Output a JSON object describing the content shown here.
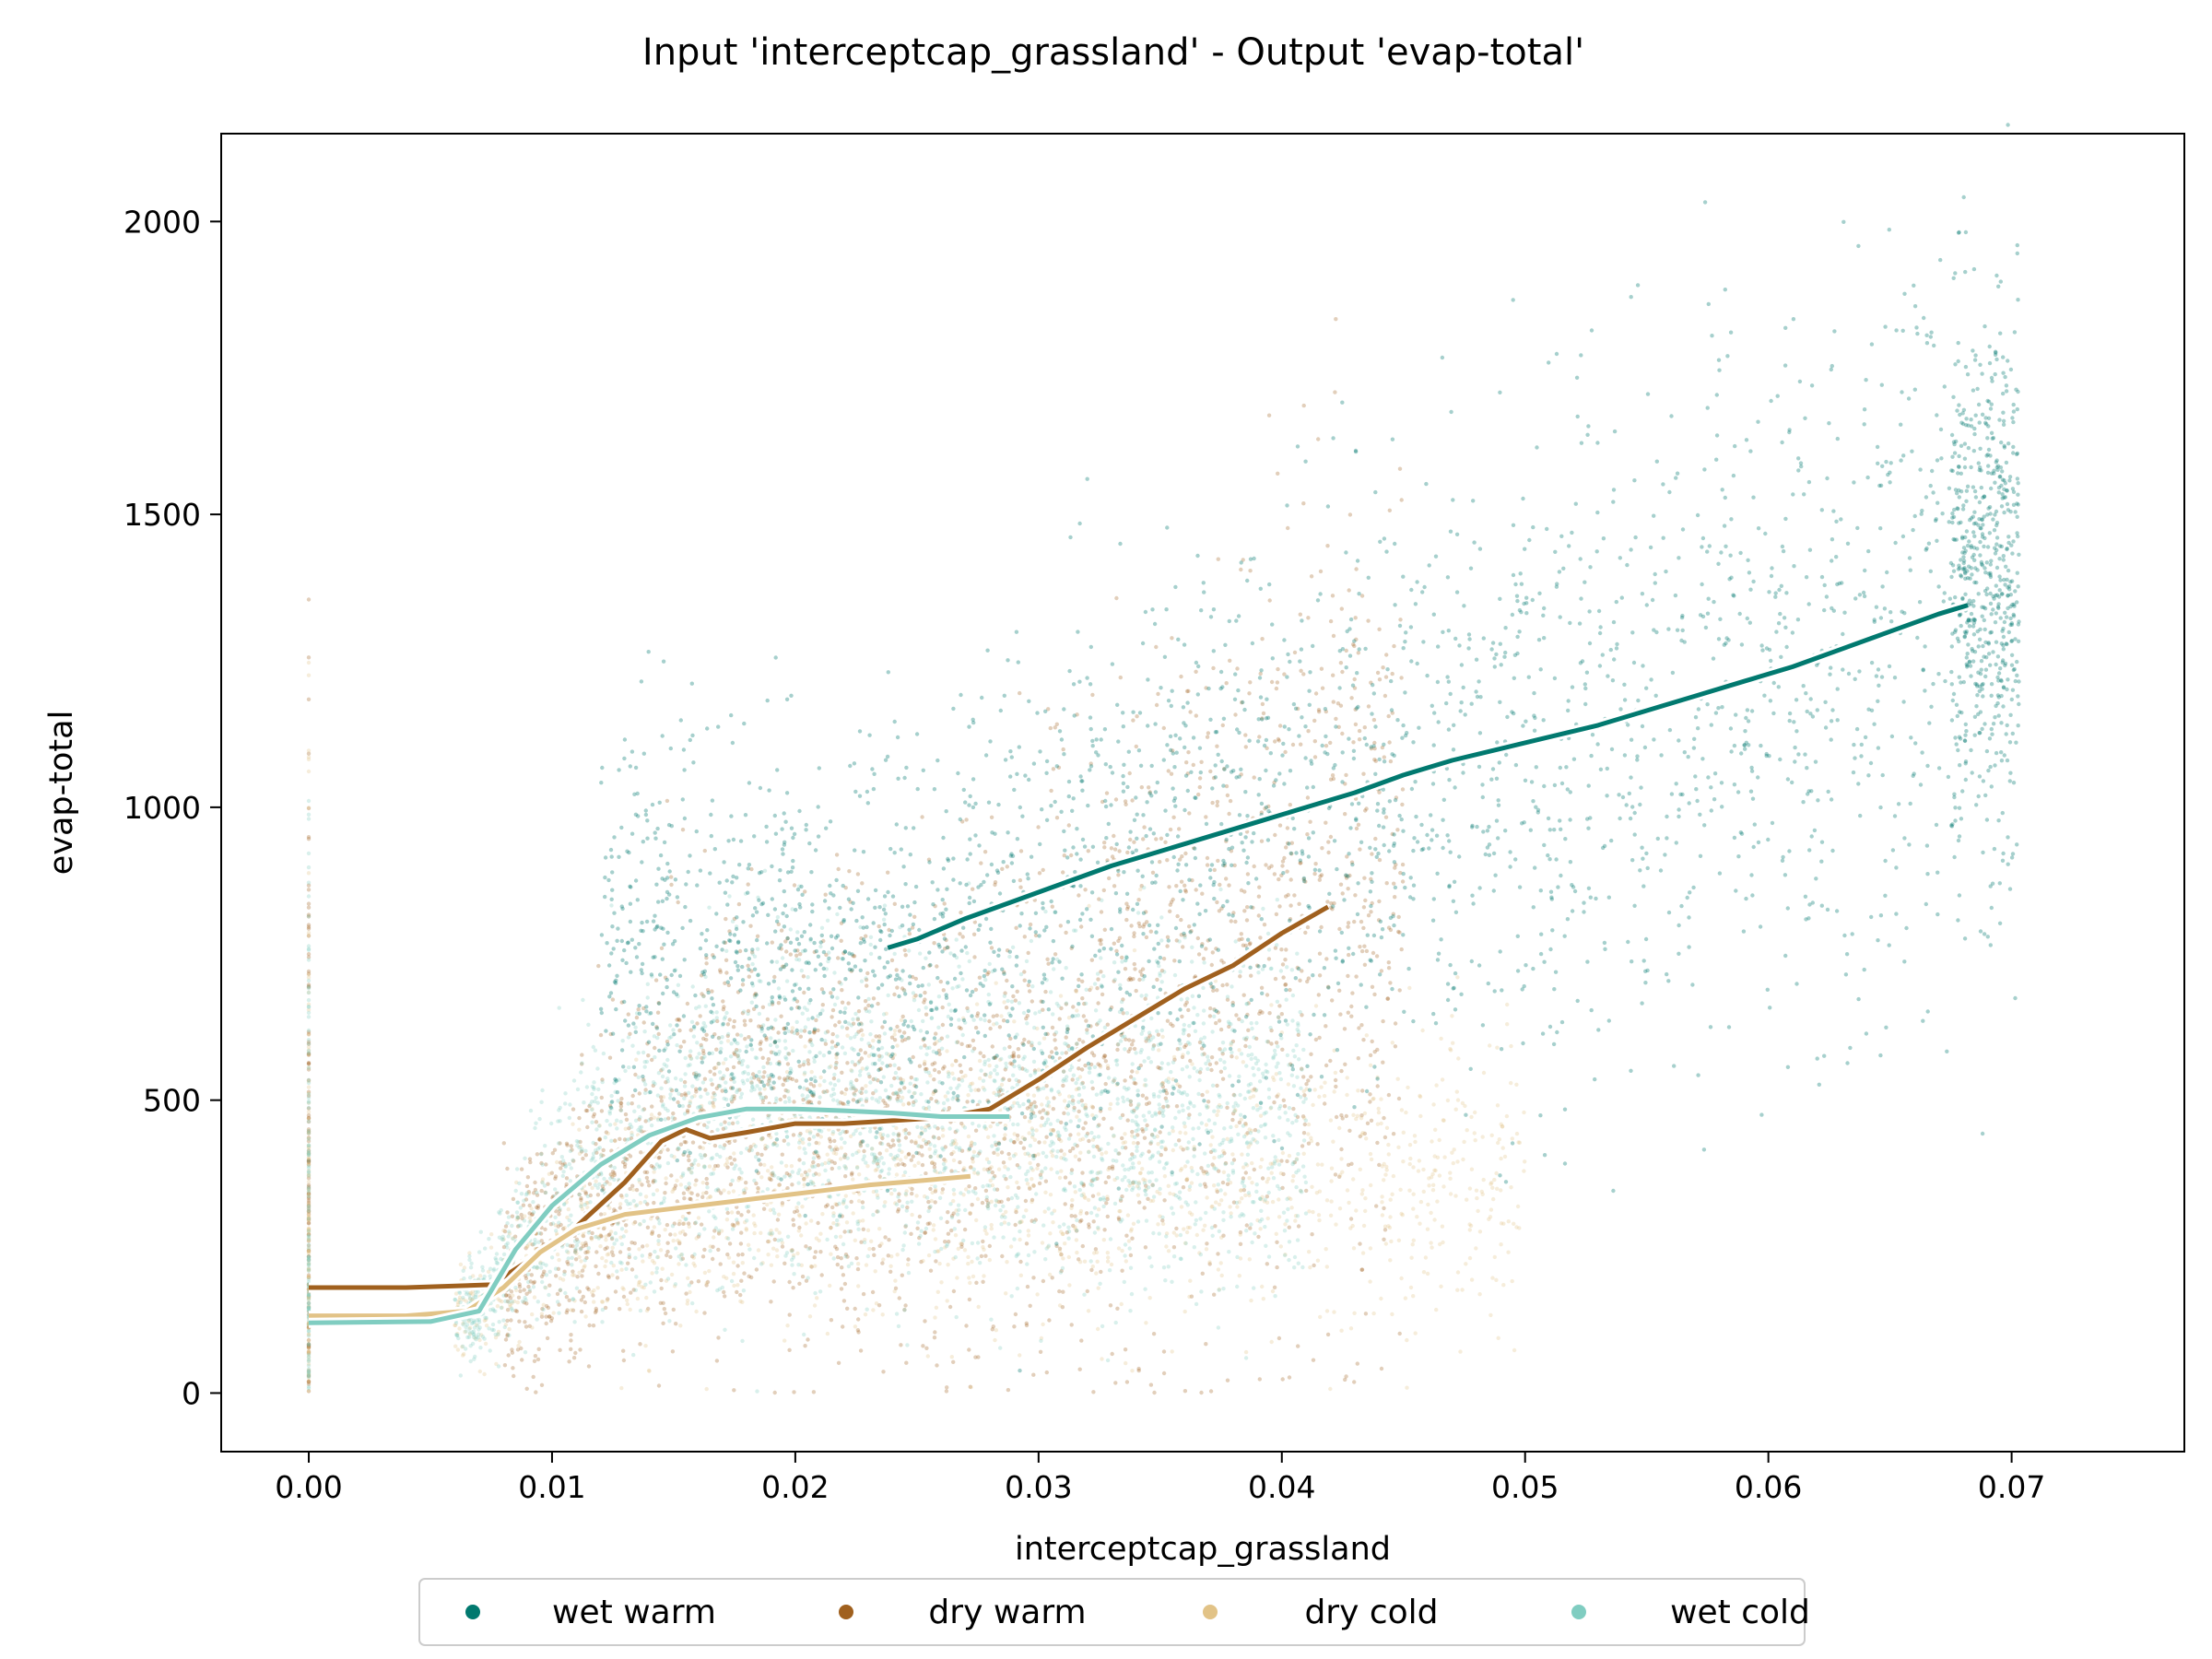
{
  "chart_data": {
    "type": "scatter",
    "title": "Input 'interceptcap_grassland' - Output 'evap-total'",
    "xlabel": "interceptcap_grassland",
    "ylabel": "evap-total",
    "xlim": [
      -0.0036,
      0.0771
    ],
    "ylim": [
      -100,
      2150
    ],
    "x_ticks": [
      0.0,
      0.01,
      0.02,
      0.03,
      0.04,
      0.05,
      0.06,
      0.07
    ],
    "x_tick_labels": [
      "0.00",
      "0.01",
      "0.02",
      "0.03",
      "0.04",
      "0.05",
      "0.06",
      "0.07"
    ],
    "y_ticks": [
      0,
      500,
      1000,
      1500,
      2000
    ],
    "y_tick_labels": [
      "0",
      "500",
      "1000",
      "1500",
      "2000"
    ],
    "grid": false,
    "legend_position": "bottom-center",
    "series": [
      {
        "name": "wet warm",
        "color": "#01796f",
        "trend": {
          "x": [
            0.0238,
            0.025,
            0.027,
            0.029,
            0.031,
            0.033,
            0.035,
            0.037,
            0.039,
            0.041,
            0.043,
            0.045,
            0.047,
            0.049,
            0.051,
            0.053,
            0.055,
            0.057,
            0.059,
            0.061,
            0.063,
            0.065,
            0.067,
            0.0682
          ],
          "y": [
            760,
            775,
            810,
            840,
            870,
            900,
            925,
            950,
            975,
            1000,
            1025,
            1055,
            1080,
            1100,
            1120,
            1140,
            1165,
            1190,
            1215,
            1240,
            1270,
            1300,
            1330,
            1345
          ]
        }
      },
      {
        "name": "dry warm",
        "color": "#a0601e",
        "trend": {
          "x": [
            0.0,
            0.004,
            0.0075,
            0.0105,
            0.013,
            0.0145,
            0.0155,
            0.0165,
            0.018,
            0.02,
            0.022,
            0.024,
            0.026,
            0.028,
            0.03,
            0.032,
            0.034,
            0.036,
            0.038,
            0.04,
            0.0419
          ],
          "y": [
            180,
            180,
            185,
            265,
            360,
            430,
            450,
            435,
            445,
            460,
            460,
            465,
            470,
            485,
            535,
            590,
            640,
            690,
            730,
            785,
            830
          ]
        }
      },
      {
        "name": "dry cold",
        "color": "#e2c387",
        "trend": {
          "x": [
            0.0,
            0.004,
            0.0065,
            0.008,
            0.0095,
            0.011,
            0.013,
            0.015,
            0.017,
            0.019,
            0.021,
            0.023,
            0.025,
            0.0272
          ],
          "y": [
            132,
            132,
            140,
            180,
            240,
            280,
            305,
            315,
            325,
            335,
            345,
            355,
            362,
            370
          ]
        }
      },
      {
        "name": "wet cold",
        "color": "#80cdc1",
        "trend": {
          "x": [
            0.0,
            0.005,
            0.007,
            0.0085,
            0.01,
            0.012,
            0.014,
            0.016,
            0.018,
            0.02,
            0.022,
            0.024,
            0.026,
            0.0288
          ],
          "y": [
            120,
            122,
            140,
            245,
            320,
            390,
            440,
            470,
            485,
            485,
            482,
            478,
            472,
            472
          ]
        }
      }
    ]
  }
}
